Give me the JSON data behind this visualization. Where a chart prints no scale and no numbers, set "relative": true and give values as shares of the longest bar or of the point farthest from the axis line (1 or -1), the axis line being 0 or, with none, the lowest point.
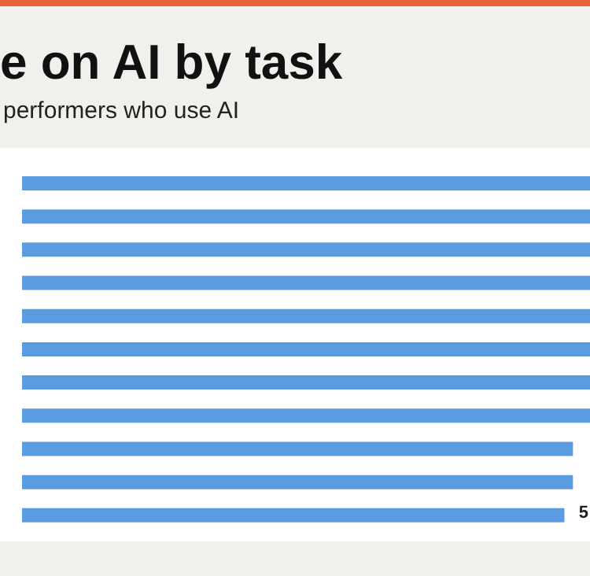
{
  "chart_data": {
    "type": "bar",
    "orientation": "horizontal",
    "relative": true,
    "title": "e on AI by task",
    "subtitle": "performers who use AI",
    "categories": [
      null,
      null,
      null,
      null,
      null,
      null,
      null,
      null,
      null,
      null,
      null
    ],
    "values": [
      1,
      1,
      1,
      1,
      1,
      1,
      1,
      1,
      0.97,
      0.97,
      0.955
    ],
    "annotations": [
      "5"
    ],
    "color": "#5b9be0"
  }
}
